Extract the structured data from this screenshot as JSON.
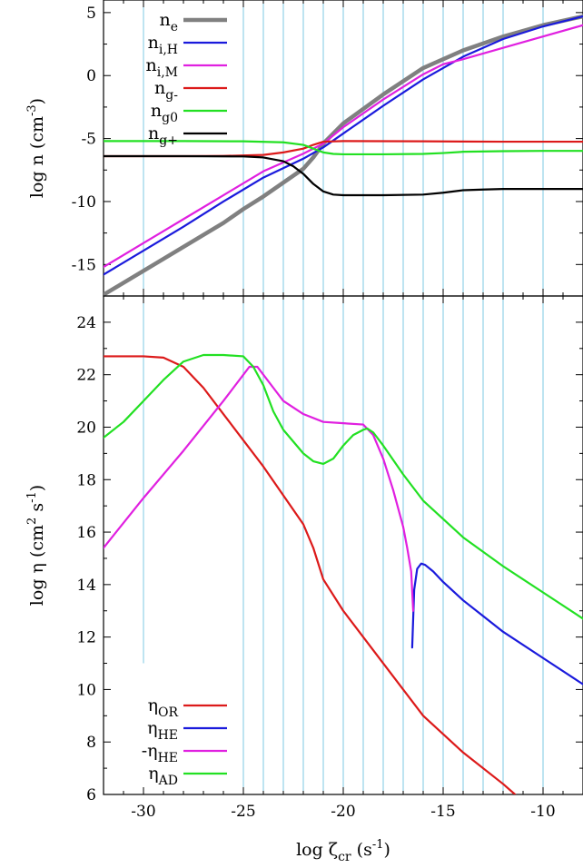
{
  "chart_data": [
    {
      "type": "line",
      "panel": "top",
      "ylabel_parts": [
        "log n (cm",
        "-3",
        ")"
      ],
      "xlim": [
        -32,
        -8
      ],
      "ylim": [
        -17.5,
        6
      ],
      "yticks": [
        5,
        0,
        -5,
        -10,
        -15
      ],
      "ytick_labels": [
        "5",
        "0",
        "-5",
        "-10",
        "-15"
      ],
      "vlines": [
        -30,
        -25,
        -24,
        -23,
        -22,
        -21,
        -20,
        -19,
        -18,
        -17,
        -16,
        -15,
        -14,
        -13,
        -12,
        -10
      ],
      "vline_color": "#7ec8e3",
      "legend_position": "top-left",
      "series": [
        {
          "name": "n",
          "sub": "e",
          "color": "#808080",
          "width": 4.5,
          "x": [
            -32,
            -30,
            -28,
            -26,
            -25,
            -24,
            -23,
            -22,
            -21.5,
            -21,
            -20,
            -18,
            -16,
            -14,
            -12,
            -10,
            -8
          ],
          "y": [
            -17.4,
            -15.5,
            -13.6,
            -11.7,
            -10.6,
            -9.6,
            -8.5,
            -7.4,
            -6.5,
            -5.4,
            -3.8,
            -1.5,
            0.6,
            2.0,
            3.1,
            4.0,
            4.7
          ]
        },
        {
          "name": "n",
          "sub": "i,H",
          "color": "#1a1adc",
          "width": 2.2,
          "x": [
            -32,
            -30,
            -28,
            -26,
            -24,
            -22,
            -21,
            -20,
            -18,
            -16,
            -14,
            -12,
            -10,
            -8
          ],
          "y": [
            -15.8,
            -13.9,
            -12.0,
            -10.0,
            -8.1,
            -6.6,
            -5.7,
            -4.6,
            -2.4,
            -0.3,
            1.5,
            2.9,
            3.9,
            4.7
          ]
        },
        {
          "name": "n",
          "sub": "i,M",
          "color": "#e020e0",
          "width": 2.2,
          "x": [
            -32,
            -30,
            -28,
            -26,
            -24,
            -22,
            -21,
            -20,
            -18,
            -16,
            -15,
            -14,
            -12,
            -10,
            -8
          ],
          "y": [
            -15.2,
            -13.3,
            -11.4,
            -9.5,
            -7.6,
            -6.2,
            -5.4,
            -4.1,
            -1.9,
            0.1,
            0.9,
            1.3,
            2.2,
            3.1,
            4.0
          ]
        },
        {
          "name": "n",
          "sub": "g-",
          "color": "#dc1a1a",
          "width": 2.2,
          "x": [
            -32,
            -28,
            -26,
            -24,
            -23,
            -22,
            -21.5,
            -21,
            -20,
            -16,
            -12,
            -8
          ],
          "y": [
            -6.4,
            -6.4,
            -6.38,
            -6.3,
            -6.1,
            -5.8,
            -5.5,
            -5.25,
            -5.2,
            -5.22,
            -5.25,
            -5.25
          ]
        },
        {
          "name": "n",
          "sub": "g0",
          "color": "#22e022",
          "width": 2.2,
          "x": [
            -32,
            -28,
            -25,
            -23,
            -22,
            -21.5,
            -21,
            -20.5,
            -20,
            -18,
            -16,
            -15,
            -14,
            -12,
            -10,
            -8
          ],
          "y": [
            -5.2,
            -5.2,
            -5.22,
            -5.3,
            -5.5,
            -5.8,
            -6.1,
            -6.22,
            -6.25,
            -6.25,
            -6.22,
            -6.15,
            -6.05,
            -6.0,
            -5.98,
            -5.98
          ]
        },
        {
          "name": "n",
          "sub": "g+",
          "color": "#000000",
          "width": 2.2,
          "x": [
            -32,
            -28,
            -25,
            -24,
            -23,
            -22.5,
            -22,
            -21.5,
            -21,
            -20.5,
            -20,
            -18,
            -16,
            -15,
            -14,
            -13,
            -12,
            -10,
            -8
          ],
          "y": [
            -6.4,
            -6.4,
            -6.42,
            -6.5,
            -6.8,
            -7.2,
            -7.8,
            -8.6,
            -9.2,
            -9.45,
            -9.5,
            -9.5,
            -9.45,
            -9.3,
            -9.1,
            -9.05,
            -9.0,
            -9.0,
            -9.0
          ]
        }
      ]
    },
    {
      "type": "line",
      "panel": "bottom",
      "xlabel_parts": [
        "log ζ",
        "cr",
        " (s",
        "-1",
        ")"
      ],
      "ylabel_parts": [
        "log η (cm",
        "2",
        " s",
        "-1",
        ")"
      ],
      "xlim": [
        -32,
        -8
      ],
      "ylim": [
        6,
        25
      ],
      "xticks": [
        -30,
        -25,
        -20,
        -15,
        -10
      ],
      "xtick_labels": [
        "-30",
        "-25",
        "-20",
        "-15",
        "-10"
      ],
      "yticks": [
        24,
        22,
        20,
        18,
        16,
        14,
        12,
        10,
        8,
        6
      ],
      "ytick_labels": [
        "24",
        "22",
        "20",
        "18",
        "16",
        "14",
        "12",
        "10",
        "8",
        "6"
      ],
      "vlines": [
        -30,
        -25,
        -24,
        -23,
        -22,
        -21,
        -20,
        -19,
        -18,
        -17,
        -16,
        -15,
        -14,
        -13,
        -12,
        -10
      ],
      "vline_color": "#7ec8e3",
      "vline_bottom": [
        11.0,
        6,
        6,
        6,
        6,
        6,
        6,
        6,
        6,
        6,
        6,
        6,
        6,
        6,
        6,
        6
      ],
      "legend_position": "bottom-left",
      "series": [
        {
          "name": "η",
          "sub": "OR",
          "color": "#dc1a1a",
          "width": 2.2,
          "x": [
            -32,
            -30,
            -29,
            -28,
            -27,
            -26,
            -25,
            -24,
            -23,
            -22,
            -21.5,
            -21,
            -20,
            -18,
            -16,
            -14,
            -12,
            -11.4
          ],
          "y": [
            22.7,
            22.7,
            22.65,
            22.3,
            21.5,
            20.5,
            19.5,
            18.5,
            17.4,
            16.3,
            15.4,
            14.2,
            13.0,
            11.0,
            9.0,
            7.6,
            6.4,
            6.0
          ]
        },
        {
          "name": "η",
          "sub": "HE",
          "color": "#1a1adc",
          "width": 2.2,
          "x": [
            -16.55,
            -16.45,
            -16.3,
            -16.1,
            -15.9,
            -15.5,
            -15,
            -14,
            -13,
            -12,
            -10,
            -8
          ],
          "y": [
            11.6,
            13.8,
            14.6,
            14.8,
            14.75,
            14.5,
            14.1,
            13.4,
            12.8,
            12.2,
            11.2,
            10.2
          ]
        },
        {
          "name": "-η",
          "sub": "HE",
          "color": "#e020e0",
          "width": 2.2,
          "x": [
            -32,
            -30,
            -28,
            -26,
            -25.5,
            -25,
            -24.7,
            -24.3,
            -24,
            -23.5,
            -23,
            -22,
            -21,
            -20,
            -19,
            -18.5,
            -18,
            -17.5,
            -17,
            -16.8,
            -16.6,
            -16.5
          ],
          "y": [
            15.4,
            17.3,
            19.1,
            21.0,
            21.5,
            22.0,
            22.3,
            22.3,
            22.0,
            21.5,
            21.0,
            20.5,
            20.2,
            20.15,
            20.1,
            19.7,
            18.8,
            17.6,
            16.2,
            15.4,
            14.5,
            13.0
          ]
        },
        {
          "name": "η",
          "sub": "AD",
          "color": "#22e022",
          "width": 2.2,
          "x": [
            -32,
            -31,
            -30,
            -29,
            -28,
            -27,
            -26,
            -25,
            -24.5,
            -24,
            -23.5,
            -23,
            -22,
            -21.5,
            -21,
            -20.5,
            -20,
            -19.5,
            -19,
            -18.8,
            -18.5,
            -18,
            -17,
            -16,
            -14,
            -12,
            -10,
            -8
          ],
          "y": [
            19.6,
            20.2,
            21.0,
            21.8,
            22.5,
            22.75,
            22.75,
            22.7,
            22.3,
            21.6,
            20.6,
            19.9,
            19.0,
            18.7,
            18.6,
            18.8,
            19.3,
            19.7,
            19.9,
            19.95,
            19.8,
            19.3,
            18.2,
            17.2,
            15.8,
            14.7,
            13.7,
            12.7
          ]
        }
      ]
    }
  ]
}
